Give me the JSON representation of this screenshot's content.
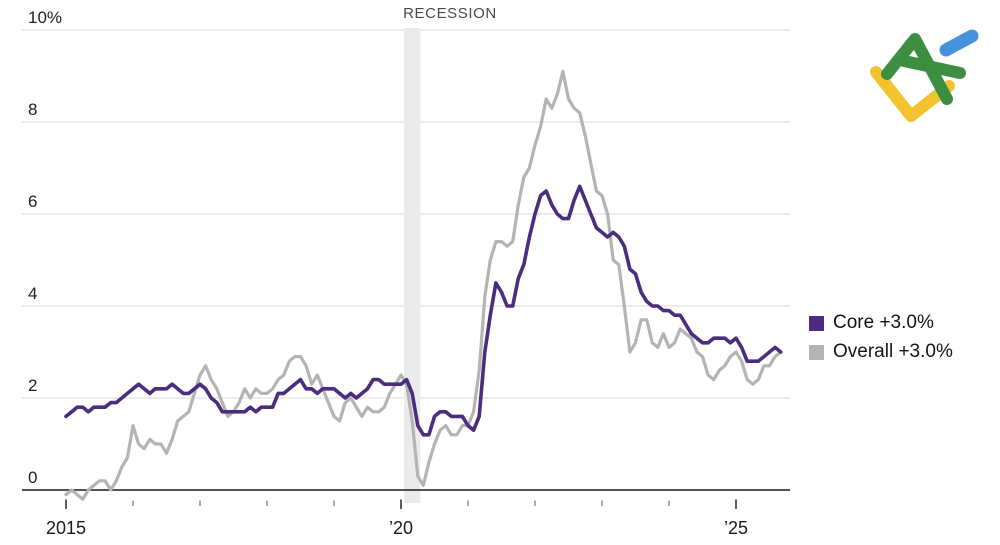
{
  "page": {
    "background": "#ffffff"
  },
  "logo": {
    "icon": "litefinance-logo",
    "colors": {
      "green": "#3e8e41",
      "yellow": "#f2c32f",
      "blue": "#4593dd"
    }
  },
  "chart_data": {
    "type": "line",
    "title": "",
    "frequency": "monthly",
    "x_start": "2015-01",
    "x_end": "2025-09",
    "grid": "horizontal",
    "legend_position": "right",
    "y_axis": {
      "ticks": [
        0,
        2,
        4,
        6,
        8,
        10
      ],
      "tick_labels": [
        "0",
        "2",
        "4",
        "6",
        "8",
        "10%"
      ],
      "ylim": [
        -0.4,
        10
      ]
    },
    "x_axis": {
      "ticks": [
        {
          "year": 2015,
          "label": "2015",
          "major": true
        },
        {
          "year": 2016,
          "label": "",
          "major": false
        },
        {
          "year": 2017,
          "label": "",
          "major": false
        },
        {
          "year": 2018,
          "label": "",
          "major": false
        },
        {
          "year": 2019,
          "label": "",
          "major": false
        },
        {
          "year": 2020,
          "label": "’20",
          "major": true
        },
        {
          "year": 2021,
          "label": "",
          "major": false
        },
        {
          "year": 2022,
          "label": "",
          "major": false
        },
        {
          "year": 2023,
          "label": "",
          "major": false
        },
        {
          "year": 2024,
          "label": "",
          "major": false
        },
        {
          "year": 2025,
          "label": "’25",
          "major": true
        }
      ]
    },
    "annotations": [
      {
        "label": "RECESSION",
        "type": "band",
        "band_start": "2020-02",
        "band_end": "2020-04",
        "band_color": "#ebebeb"
      }
    ],
    "series": [
      {
        "name": "Core",
        "legend_label": "Core +3.0%",
        "color": "#4a2d7f",
        "values": [
          1.6,
          1.7,
          1.8,
          1.8,
          1.7,
          1.8,
          1.8,
          1.8,
          1.9,
          1.9,
          2.0,
          2.1,
          2.2,
          2.3,
          2.2,
          2.1,
          2.2,
          2.2,
          2.2,
          2.3,
          2.2,
          2.1,
          2.1,
          2.2,
          2.3,
          2.2,
          2.0,
          1.9,
          1.7,
          1.7,
          1.7,
          1.7,
          1.7,
          1.8,
          1.7,
          1.8,
          1.8,
          1.8,
          2.1,
          2.1,
          2.2,
          2.3,
          2.4,
          2.2,
          2.2,
          2.1,
          2.2,
          2.2,
          2.2,
          2.1,
          2.0,
          2.1,
          2.0,
          2.1,
          2.2,
          2.4,
          2.4,
          2.3,
          2.3,
          2.3,
          2.3,
          2.4,
          2.1,
          1.4,
          1.2,
          1.2,
          1.6,
          1.7,
          1.7,
          1.6,
          1.6,
          1.6,
          1.4,
          1.3,
          1.6,
          3.0,
          3.8,
          4.5,
          4.3,
          4.0,
          4.0,
          4.6,
          4.9,
          5.5,
          6.0,
          6.4,
          6.5,
          6.2,
          6.0,
          5.9,
          5.9,
          6.3,
          6.6,
          6.3,
          6.0,
          5.7,
          5.6,
          5.5,
          5.6,
          5.5,
          5.3,
          4.8,
          4.7,
          4.3,
          4.1,
          4.0,
          4.0,
          3.9,
          3.9,
          3.8,
          3.8,
          3.6,
          3.4,
          3.3,
          3.2,
          3.2,
          3.3,
          3.3,
          3.3,
          3.2,
          3.3,
          3.1,
          2.8,
          2.8,
          2.8,
          2.9,
          3.0,
          3.1,
          3.0
        ]
      },
      {
        "name": "Overall",
        "legend_label": "Overall +3.0%",
        "color": "#b4b4b4",
        "values": [
          -0.1,
          0.0,
          -0.1,
          -0.2,
          0.0,
          0.1,
          0.2,
          0.2,
          0.0,
          0.2,
          0.5,
          0.7,
          1.4,
          1.0,
          0.9,
          1.1,
          1.0,
          1.0,
          0.8,
          1.1,
          1.5,
          1.6,
          1.7,
          2.1,
          2.5,
          2.7,
          2.4,
          2.2,
          1.9,
          1.6,
          1.7,
          1.9,
          2.2,
          2.0,
          2.2,
          2.1,
          2.1,
          2.2,
          2.4,
          2.5,
          2.8,
          2.9,
          2.9,
          2.7,
          2.3,
          2.5,
          2.2,
          1.9,
          1.6,
          1.5,
          1.9,
          2.0,
          1.8,
          1.6,
          1.8,
          1.7,
          1.7,
          1.8,
          2.1,
          2.3,
          2.5,
          2.3,
          1.5,
          0.3,
          0.1,
          0.6,
          1.0,
          1.3,
          1.4,
          1.2,
          1.2,
          1.4,
          1.4,
          1.7,
          2.6,
          4.2,
          5.0,
          5.4,
          5.4,
          5.3,
          5.4,
          6.2,
          6.8,
          7.0,
          7.5,
          7.9,
          8.5,
          8.3,
          8.6,
          9.1,
          8.5,
          8.3,
          8.2,
          7.7,
          7.1,
          6.5,
          6.4,
          6.0,
          5.0,
          4.9,
          4.0,
          3.0,
          3.2,
          3.7,
          3.7,
          3.2,
          3.1,
          3.4,
          3.1,
          3.2,
          3.5,
          3.4,
          3.3,
          3.0,
          2.9,
          2.5,
          2.4,
          2.6,
          2.7,
          2.9,
          3.0,
          2.8,
          2.4,
          2.3,
          2.4,
          2.7,
          2.7,
          2.9,
          3.0
        ]
      }
    ]
  }
}
